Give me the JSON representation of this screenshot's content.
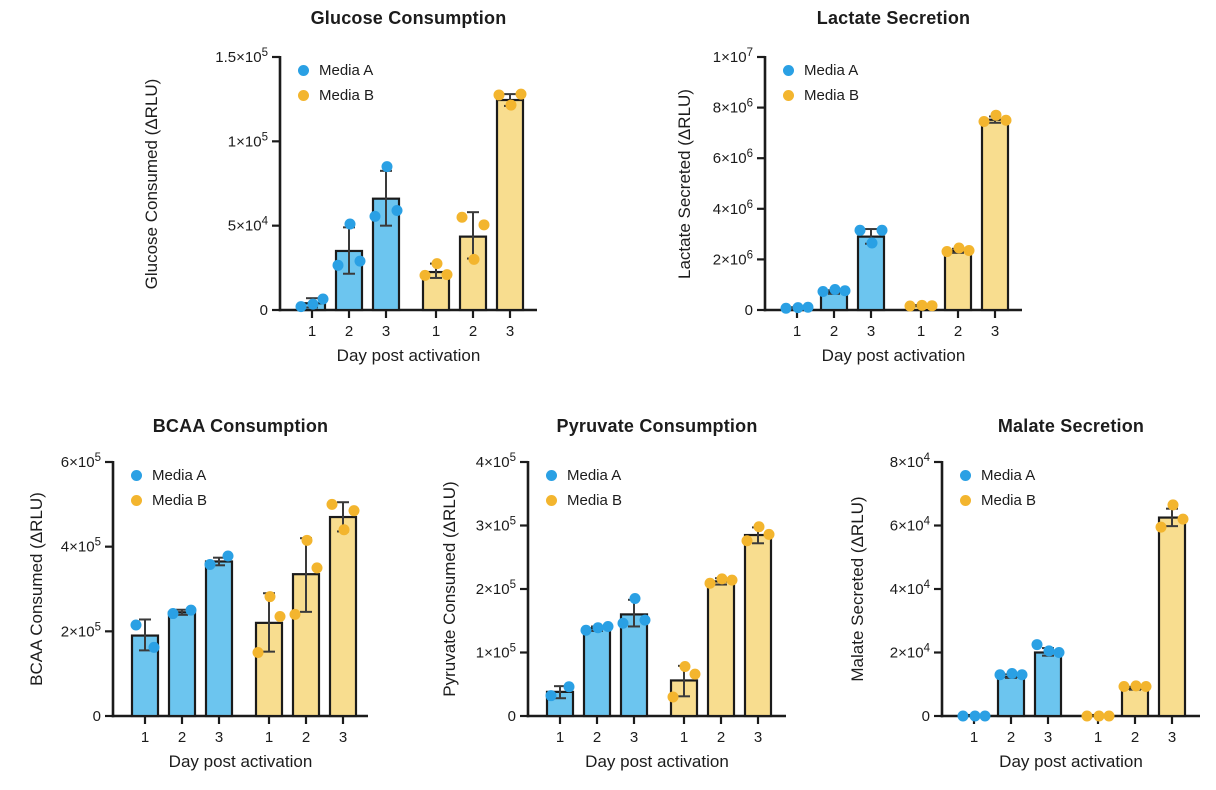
{
  "figure_title": "",
  "legend": {
    "media_a": "Media A",
    "media_b": "Media B"
  },
  "colors": {
    "media_a_point": "#2AA0E4",
    "media_a_fill": "#6CC5EF",
    "media_b_point": "#F3B52E",
    "media_b_fill": "#F8DD8F",
    "axis_and_text": "#1B1B1B",
    "error_bar": "#3A3A3A",
    "background": "#FFFFFF"
  },
  "chart_data": [
    {
      "id": "glucose-consumption",
      "type": "bar",
      "title": "Glucose Consumption",
      "xlabel": "Day post activation",
      "ylabel": "Glucose Consumed (ΔRLU)",
      "ylim": [
        0,
        150000
      ],
      "grid": false,
      "legend_position": "top-left-inside",
      "legend_entries": [
        "Media A",
        "Media B"
      ],
      "yticks": [
        {
          "v": 0,
          "base": "0",
          "exp": ""
        },
        {
          "v": 50000,
          "base": "5×10",
          "exp": "4"
        },
        {
          "v": 100000,
          "base": "1×10",
          "exp": "5"
        },
        {
          "v": 150000,
          "base": "1.5×10",
          "exp": "5"
        }
      ],
      "categories": [
        "1",
        "2",
        "3",
        "1",
        "2",
        "3"
      ],
      "series": [
        {
          "name": "Media A",
          "bars": [
            {
              "day": "1",
              "mean": 4000,
              "err": [
                1500,
                7000
              ],
              "points": [
                2000,
                3500,
                6500
              ]
            },
            {
              "day": "2",
              "mean": 35000,
              "err": [
                21500,
                49000
              ],
              "points": [
                26500,
                51000,
                29000
              ]
            },
            {
              "day": "3",
              "mean": 66000,
              "err": [
                50000,
                82500
              ],
              "points": [
                55500,
                85000,
                59000
              ]
            }
          ]
        },
        {
          "name": "Media B",
          "bars": [
            {
              "day": "1",
              "mean": 22500,
              "err": [
                19000,
                27500
              ],
              "points": [
                20500,
                27500,
                21000
              ]
            },
            {
              "day": "2",
              "mean": 43500,
              "err": [
                30500,
                58000
              ],
              "points": [
                55000,
                30000,
                50500
              ]
            },
            {
              "day": "3",
              "mean": 124500,
              "err": [
                121000,
                128000
              ],
              "points": [
                127500,
                121500,
                128000
              ]
            }
          ]
        }
      ]
    },
    {
      "id": "lactate-secretion",
      "type": "bar",
      "title": "Lactate Secretion",
      "xlabel": "Day post activation",
      "ylabel": "Lactate Secreted (ΔRLU)",
      "ylim": [
        0,
        10000000
      ],
      "grid": false,
      "legend_position": "top-left-inside",
      "legend_entries": [
        "Media A",
        "Media B"
      ],
      "yticks": [
        {
          "v": 0,
          "base": "0",
          "exp": ""
        },
        {
          "v": 2000000,
          "base": "2×10",
          "exp": "6"
        },
        {
          "v": 4000000,
          "base": "4×10",
          "exp": "6"
        },
        {
          "v": 6000000,
          "base": "6×10",
          "exp": "6"
        },
        {
          "v": 8000000,
          "base": "8×10",
          "exp": "6"
        },
        {
          "v": 10000000,
          "base": "1×10",
          "exp": "7"
        }
      ],
      "categories": [
        "1",
        "2",
        "3",
        "1",
        "2",
        "3"
      ],
      "series": [
        {
          "name": "Media A",
          "bars": [
            {
              "day": "1",
              "mean": 80000,
              "err": [
                60000,
                110000
              ],
              "points": [
                70000,
                95000,
                110000
              ]
            },
            {
              "day": "2",
              "mean": 710000,
              "err": [
                640000,
                780000
              ],
              "points": [
                730000,
                810000,
                760000
              ]
            },
            {
              "day": "3",
              "mean": 2900000,
              "err": [
                2620000,
                3200000
              ],
              "points": [
                3150000,
                2650000,
                3150000
              ]
            }
          ]
        },
        {
          "name": "Media B",
          "bars": [
            {
              "day": "1",
              "mean": 170000,
              "err": [
                150000,
                195000
              ],
              "points": [
                160000,
                185000,
                170000
              ]
            },
            {
              "day": "2",
              "mean": 2330000,
              "err": [
                2260000,
                2420000
              ],
              "points": [
                2310000,
                2450000,
                2350000
              ]
            },
            {
              "day": "3",
              "mean": 7520000,
              "err": [
                7400000,
                7650000
              ],
              "points": [
                7450000,
                7700000,
                7500000
              ]
            }
          ]
        }
      ]
    },
    {
      "id": "bcaa-consumption",
      "type": "bar",
      "title": "BCAA Consumption",
      "xlabel": "Day post activation",
      "ylabel": "BCAA Consumed (ΔRLU)",
      "ylim": [
        0,
        600000
      ],
      "grid": false,
      "legend_position": "top-left-inside",
      "legend_entries": [
        "Media A",
        "Media B"
      ],
      "yticks": [
        {
          "v": 0,
          "base": "0",
          "exp": ""
        },
        {
          "v": 200000,
          "base": "2×10",
          "exp": "5"
        },
        {
          "v": 400000,
          "base": "4×10",
          "exp": "5"
        },
        {
          "v": 600000,
          "base": "6×10",
          "exp": "5"
        }
      ],
      "categories": [
        "1",
        "2",
        "3",
        "1",
        "2",
        "3"
      ],
      "series": [
        {
          "name": "Media A",
          "bars": [
            {
              "day": "1",
              "mean": 190000,
              "err": [
                155000,
                228000
              ],
              "points": [
                215000,
                162000
              ]
            },
            {
              "day": "2",
              "mean": 245000,
              "err": [
                239000,
                251000
              ],
              "points": [
                242000,
                250000
              ]
            },
            {
              "day": "3",
              "mean": 365000,
              "err": [
                356000,
                374000
              ],
              "points": [
                358000,
                378000
              ]
            }
          ]
        },
        {
          "name": "Media B",
          "bars": [
            {
              "day": "1",
              "mean": 220000,
              "err": [
                152000,
                290000
              ],
              "points": [
                150000,
                282000,
                235000
              ]
            },
            {
              "day": "2",
              "mean": 335000,
              "err": [
                246000,
                420000
              ],
              "points": [
                240000,
                415000,
                350000
              ]
            },
            {
              "day": "3",
              "mean": 470000,
              "err": [
                436000,
                505000
              ],
              "points": [
                500000,
                440000,
                485000
              ]
            }
          ]
        }
      ]
    },
    {
      "id": "pyruvate-consumption",
      "type": "bar",
      "title": "Pyruvate Consumption",
      "xlabel": "Day post activation",
      "ylabel": "Pyruvate Consumed (ΔRLU)",
      "ylim": [
        0,
        400000
      ],
      "grid": false,
      "legend_position": "top-left-inside",
      "legend_entries": [
        "Media A",
        "Media B"
      ],
      "yticks": [
        {
          "v": 0,
          "base": "0",
          "exp": ""
        },
        {
          "v": 100000,
          "base": "1×10",
          "exp": "5"
        },
        {
          "v": 200000,
          "base": "2×10",
          "exp": "5"
        },
        {
          "v": 300000,
          "base": "3×10",
          "exp": "5"
        },
        {
          "v": 400000,
          "base": "4×10",
          "exp": "5"
        }
      ],
      "categories": [
        "1",
        "2",
        "3",
        "1",
        "2",
        "3"
      ],
      "series": [
        {
          "name": "Media A",
          "bars": [
            {
              "day": "1",
              "mean": 38000,
              "err": [
                28000,
                47000
              ],
              "points": [
                32000,
                46000
              ]
            },
            {
              "day": "2",
              "mean": 138000,
              "err": [
                134000,
                141000
              ],
              "points": [
                135000,
                139000,
                141000
              ]
            },
            {
              "day": "3",
              "mean": 160000,
              "err": [
                141000,
                183000
              ],
              "points": [
                146000,
                185000,
                151000
              ]
            }
          ]
        },
        {
          "name": "Media B",
          "bars": [
            {
              "day": "1",
              "mean": 56000,
              "err": [
                31000,
                79000
              ],
              "points": [
                30000,
                78000,
                66000
              ]
            },
            {
              "day": "2",
              "mean": 212000,
              "err": [
                207000,
                217000
              ],
              "points": [
                209000,
                216000,
                214000
              ]
            },
            {
              "day": "3",
              "mean": 285000,
              "err": [
                272000,
                297000
              ],
              "points": [
                276000,
                298000,
                286000
              ]
            }
          ]
        }
      ]
    },
    {
      "id": "malate-secretion",
      "type": "bar",
      "title": "Malate Secretion",
      "xlabel": "Day post activation",
      "ylabel": "Malate Secreted (ΔRLU)",
      "ylim": [
        0,
        80000
      ],
      "grid": false,
      "legend_position": "top-left-inside",
      "legend_entries": [
        "Media A",
        "Media B"
      ],
      "yticks": [
        {
          "v": 0,
          "base": "0",
          "exp": ""
        },
        {
          "v": 20000,
          "base": "2×10",
          "exp": "4"
        },
        {
          "v": 40000,
          "base": "4×10",
          "exp": "4"
        },
        {
          "v": 60000,
          "base": "6×10",
          "exp": "4"
        },
        {
          "v": 80000,
          "base": "8×10",
          "exp": "4"
        }
      ],
      "categories": [
        "1",
        "2",
        "3",
        "1",
        "2",
        "3"
      ],
      "series": [
        {
          "name": "Media A",
          "bars": [
            {
              "day": "1",
              "mean": 300,
              "err": [
                0,
                0
              ],
              "points": [
                0,
                0,
                0
              ]
            },
            {
              "day": "2",
              "mean": 12300,
              "err": [
                12000,
                13100
              ],
              "points": [
                13000,
                13400,
                13000
              ]
            },
            {
              "day": "3",
              "mean": 20000,
              "err": [
                19000,
                21400
              ],
              "points": [
                22500,
                20500,
                20000
              ]
            }
          ]
        },
        {
          "name": "Media B",
          "bars": [
            {
              "day": "1",
              "mean": 300,
              "err": [
                0,
                0
              ],
              "points": [
                0,
                0,
                0
              ]
            },
            {
              "day": "2",
              "mean": 8600,
              "err": [
                8300,
                9200
              ],
              "points": [
                9300,
                9500,
                9300
              ]
            },
            {
              "day": "3",
              "mean": 62500,
              "err": [
                59800,
                65300
              ],
              "points": [
                59500,
                66500,
                62000
              ]
            }
          ]
        }
      ]
    }
  ]
}
